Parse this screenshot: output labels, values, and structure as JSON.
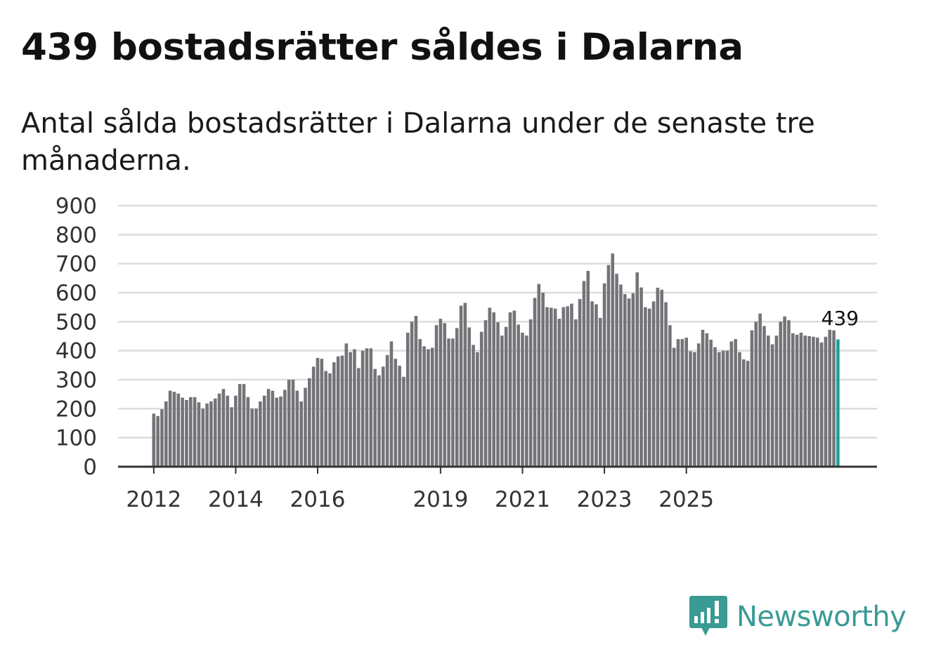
{
  "header": {
    "title": "439 bostadsrätter såldes i Dalarna",
    "subtitle": "Antal sålda bostadsrätter i Dalarna under de senaste tre månaderna."
  },
  "brand": {
    "name": "Newsworthy",
    "color": "#3a9a94",
    "icon": "newsworthy-logo-icon"
  },
  "chart_data": {
    "type": "bar",
    "title": "439 bostadsrätter såldes i Dalarna",
    "subtitle": "Antal sålda bostadsrätter i Dalarna under de senaste tre månaderna.",
    "xlabel": "",
    "ylabel": "",
    "ylim": [
      0,
      900
    ],
    "yticks": [
      0,
      100,
      200,
      300,
      400,
      500,
      600,
      700,
      800,
      900
    ],
    "grid": true,
    "xtick_labels": [
      {
        "label": "2012",
        "index": 0
      },
      {
        "label": "2014",
        "index": 20
      },
      {
        "label": "2016",
        "index": 40
      },
      {
        "label": "2019",
        "index": 70
      },
      {
        "label": "2021",
        "index": 90
      },
      {
        "label": "2023",
        "index": 110
      },
      {
        "label": "2025",
        "index": 130
      }
    ],
    "bar_color": "#747378",
    "highlight_color": "#1e9e9b",
    "last_value_label": "439",
    "values": [
      183,
      175,
      198,
      225,
      262,
      258,
      252,
      238,
      230,
      240,
      240,
      222,
      200,
      218,
      225,
      235,
      252,
      268,
      245,
      205,
      245,
      285,
      285,
      240,
      200,
      200,
      225,
      245,
      268,
      262,
      238,
      242,
      265,
      300,
      300,
      262,
      225,
      272,
      305,
      345,
      375,
      372,
      330,
      322,
      360,
      380,
      383,
      425,
      395,
      405,
      340,
      400,
      408,
      408,
      337,
      315,
      345,
      385,
      432,
      372,
      348,
      310,
      462,
      500,
      520,
      440,
      415,
      405,
      410,
      488,
      510,
      495,
      442,
      442,
      478,
      555,
      565,
      480,
      420,
      395,
      465,
      505,
      548,
      532,
      498,
      452,
      482,
      532,
      538,
      490,
      462,
      452,
      508,
      582,
      630,
      600,
      550,
      548,
      545,
      510,
      550,
      553,
      562,
      508,
      578,
      640,
      675,
      570,
      560,
      513,
      632,
      695,
      735,
      665,
      628,
      595,
      580,
      598,
      670,
      618,
      550,
      545,
      570,
      617,
      610,
      567,
      488,
      410,
      440,
      440,
      445,
      398,
      395,
      425,
      472,
      460,
      438,
      412,
      395,
      400,
      400,
      432,
      440,
      395,
      370,
      365,
      470,
      500,
      528,
      485,
      452,
      422,
      452,
      500,
      518,
      505,
      460,
      455,
      462,
      452,
      450,
      448,
      445,
      428,
      448,
      472,
      470,
      439
    ]
  }
}
